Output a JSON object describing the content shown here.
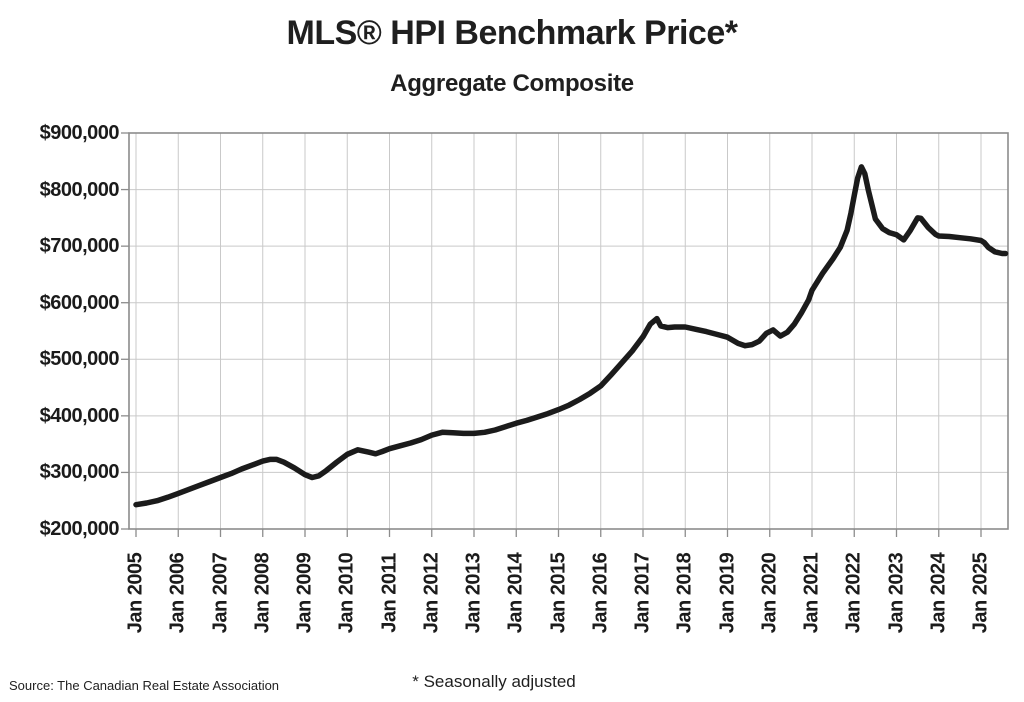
{
  "chart_data": {
    "type": "line",
    "title": "MLS® HPI Benchmark Price*",
    "subtitle": "Aggregate Composite",
    "xlabel": "",
    "ylabel": "",
    "grid": true,
    "legend_position": "none",
    "line_color": "#1b1b1b",
    "grid_color": "#c9c9c9",
    "axis_color": "#8c8c8c",
    "ylim": [
      200000,
      900000
    ],
    "xlim": [
      2004.83,
      2025.64
    ],
    "y_ticks": [
      {
        "label": "$900,000",
        "value": 900000
      },
      {
        "label": "$800,000",
        "value": 800000
      },
      {
        "label": "$700,000",
        "value": 700000
      },
      {
        "label": "$600,000",
        "value": 600000
      },
      {
        "label": "$500,000",
        "value": 500000
      },
      {
        "label": "$400,000",
        "value": 400000
      },
      {
        "label": "$300,000",
        "value": 300000
      },
      {
        "label": "$200,000",
        "value": 200000
      }
    ],
    "x_ticks": [
      "Jan 2005",
      "Jan 2006",
      "Jan 2007",
      "Jan 2008",
      "Jan 2009",
      "Jan 2010",
      "Jan 2011",
      "Jan 2012",
      "Jan 2013",
      "Jan 2014",
      "Jan 2015",
      "Jan 2016",
      "Jan 2017",
      "Jan 2018",
      "Jan 2019",
      "Jan 2020",
      "Jan 2021",
      "Jan 2022",
      "Jan 2023",
      "Jan 2024",
      "Jan 2025"
    ],
    "series": [
      {
        "name": "Aggregate Composite MLS® HPI benchmark price, seasonally adjusted",
        "x": [
          2005.0,
          2005.25,
          2005.5,
          2005.75,
          2006.0,
          2006.25,
          2006.5,
          2006.75,
          2007.0,
          2007.25,
          2007.5,
          2007.75,
          2008.0,
          2008.17,
          2008.33,
          2008.5,
          2008.75,
          2009.0,
          2009.17,
          2009.33,
          2009.5,
          2009.75,
          2010.0,
          2010.25,
          2010.5,
          2010.67,
          2010.83,
          2011.0,
          2011.25,
          2011.5,
          2011.75,
          2012.0,
          2012.25,
          2012.5,
          2012.75,
          2013.0,
          2013.25,
          2013.5,
          2013.75,
          2014.0,
          2014.25,
          2014.5,
          2014.75,
          2015.0,
          2015.25,
          2015.5,
          2015.75,
          2016.0,
          2016.25,
          2016.5,
          2016.75,
          2017.0,
          2017.17,
          2017.33,
          2017.42,
          2017.58,
          2017.75,
          2018.0,
          2018.25,
          2018.5,
          2018.75,
          2019.0,
          2019.25,
          2019.42,
          2019.58,
          2019.75,
          2019.92,
          2020.08,
          2020.25,
          2020.42,
          2020.58,
          2020.75,
          2020.92,
          2021.0,
          2021.25,
          2021.5,
          2021.67,
          2021.83,
          2021.92,
          2022.0,
          2022.08,
          2022.17,
          2022.25,
          2022.33,
          2022.5,
          2022.67,
          2022.83,
          2023.0,
          2023.17,
          2023.33,
          2023.5,
          2023.58,
          2023.75,
          2023.92,
          2024.0,
          2024.25,
          2024.5,
          2024.75,
          2025.0,
          2025.08,
          2025.17,
          2025.33,
          2025.5,
          2025.58
        ],
        "y": [
          243000,
          246000,
          250000,
          256000,
          263000,
          270000,
          277000,
          284000,
          291000,
          298000,
          306000,
          313000,
          320000,
          323000,
          323000,
          318000,
          308000,
          296000,
          291000,
          294000,
          303000,
          318000,
          332000,
          340000,
          336000,
          333000,
          337000,
          342000,
          347000,
          352000,
          358000,
          366000,
          371000,
          370000,
          369000,
          369000,
          371000,
          375000,
          381000,
          387000,
          392000,
          398000,
          404000,
          411000,
          419000,
          429000,
          440000,
          453000,
          473000,
          494000,
          515000,
          540000,
          562000,
          572000,
          559000,
          556000,
          557000,
          557000,
          553000,
          549000,
          544000,
          539000,
          528000,
          524000,
          526000,
          532000,
          546000,
          552000,
          541000,
          548000,
          562000,
          582000,
          605000,
          622000,
          652000,
          678000,
          698000,
          728000,
          758000,
          790000,
          820000,
          840000,
          828000,
          800000,
          748000,
          731000,
          724000,
          720000,
          711000,
          728000,
          750000,
          749000,
          733000,
          721000,
          718000,
          717000,
          715000,
          713000,
          710000,
          706000,
          698000,
          690000,
          687000,
          687000
        ]
      }
    ],
    "source": "Source: The Canadian Real Estate Association",
    "footnote": "* Seasonally adjusted"
  }
}
